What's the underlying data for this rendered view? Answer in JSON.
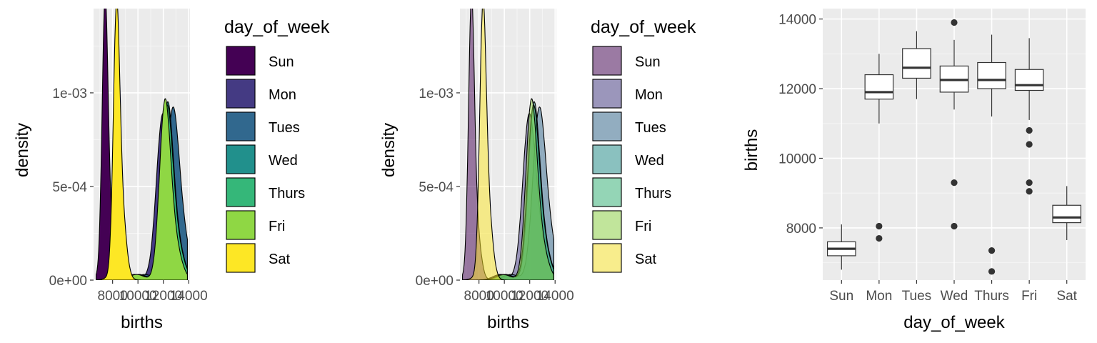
{
  "chart_data": [
    {
      "type": "area",
      "subtype": "density",
      "xlabel": "births",
      "ylabel": "density",
      "x_ticks": [
        "8000",
        "10000",
        "12000",
        "14000"
      ],
      "y_ticks": [
        "0e+00",
        "5e-04",
        "1e-03"
      ],
      "xlim": [
        6500,
        14100
      ],
      "ylim": [
        0,
        0.00145
      ],
      "grid": true,
      "alpha": 1.0,
      "legend": {
        "title": "day_of_week",
        "placement": "right"
      },
      "series": [
        {
          "name": "Sun",
          "color": "#440154",
          "center": 7400,
          "peak": 0.00137,
          "spread": 230,
          "shoulder": 7800,
          "shoulder_h": 0.00042
        },
        {
          "name": "Mon",
          "color": "#443A83",
          "center": 11900,
          "peak": 0.0007,
          "spread": 480,
          "shoulder": 12500,
          "shoulder_h": 0.00045
        },
        {
          "name": "Tues",
          "color": "#31688E",
          "center": 12700,
          "peak": 0.00073,
          "spread": 480,
          "shoulder": 13300,
          "shoulder_h": 0.00046
        },
        {
          "name": "Wed",
          "color": "#21908C",
          "center": 12300,
          "peak": 0.0008,
          "spread": 430,
          "shoulder": 12900,
          "shoulder_h": 0.0004
        },
        {
          "name": "Thurs",
          "color": "#35B779",
          "center": 12250,
          "peak": 0.00078,
          "spread": 440,
          "shoulder": 12850,
          "shoulder_h": 0.0004
        },
        {
          "name": "Fri",
          "color": "#8FD744",
          "center": 12100,
          "peak": 0.00082,
          "spread": 420,
          "shoulder": 12700,
          "shoulder_h": 0.0004
        },
        {
          "name": "Sat",
          "color": "#FDE725",
          "center": 8300,
          "peak": 0.00127,
          "spread": 250,
          "shoulder": 8700,
          "shoulder_h": 0.0006
        }
      ]
    },
    {
      "type": "area",
      "subtype": "density",
      "xlabel": "births",
      "ylabel": "density",
      "x_ticks": [
        "8000",
        "10000",
        "12000",
        "14000"
      ],
      "y_ticks": [
        "0e+00",
        "5e-04",
        "1e-03"
      ],
      "xlim": [
        6500,
        14100
      ],
      "ylim": [
        0,
        0.00145
      ],
      "grid": true,
      "alpha": 0.5,
      "legend": {
        "title": "day_of_week",
        "placement": "right"
      },
      "series": [
        {
          "name": "Sun",
          "color": "#440154"
        },
        {
          "name": "Mon",
          "color": "#443A83"
        },
        {
          "name": "Tues",
          "color": "#31688E"
        },
        {
          "name": "Wed",
          "color": "#21908C"
        },
        {
          "name": "Thurs",
          "color": "#35B779"
        },
        {
          "name": "Fri",
          "color": "#8FD744"
        },
        {
          "name": "Sat",
          "color": "#FDE725"
        }
      ]
    },
    {
      "type": "boxplot",
      "xlabel": "day_of_week",
      "ylabel": "births",
      "categories": [
        "Sun",
        "Mon",
        "Tues",
        "Wed",
        "Thurs",
        "Fri",
        "Sat"
      ],
      "y_ticks": [
        8000,
        10000,
        12000,
        14000
      ],
      "ylim": [
        6500,
        14300
      ],
      "grid": true,
      "boxes": [
        {
          "category": "Sun",
          "min": 6800,
          "q1": 7200,
          "median": 7400,
          "q3": 7600,
          "max": 8100,
          "outliers": []
        },
        {
          "category": "Mon",
          "min": 11000,
          "q1": 11700,
          "median": 11900,
          "q3": 12400,
          "max": 13000,
          "outliers": [
            8050,
            7700
          ]
        },
        {
          "category": "Tues",
          "min": 11700,
          "q1": 12300,
          "median": 12600,
          "q3": 13150,
          "max": 13650,
          "outliers": []
        },
        {
          "category": "Wed",
          "min": 11400,
          "q1": 11900,
          "median": 12250,
          "q3": 12650,
          "max": 13400,
          "outliers": [
            13900,
            9300,
            8050
          ]
        },
        {
          "category": "Thurs",
          "min": 11200,
          "q1": 12000,
          "median": 12250,
          "q3": 12750,
          "max": 13550,
          "outliers": [
            7350,
            6750
          ]
        },
        {
          "category": "Fri",
          "min": 11100,
          "q1": 11950,
          "median": 12100,
          "q3": 12550,
          "max": 13450,
          "outliers": [
            10800,
            10400,
            9300,
            9050
          ]
        },
        {
          "category": "Sat",
          "min": 7650,
          "q1": 8150,
          "median": 8300,
          "q3": 8650,
          "max": 9200,
          "outliers": []
        }
      ]
    }
  ]
}
